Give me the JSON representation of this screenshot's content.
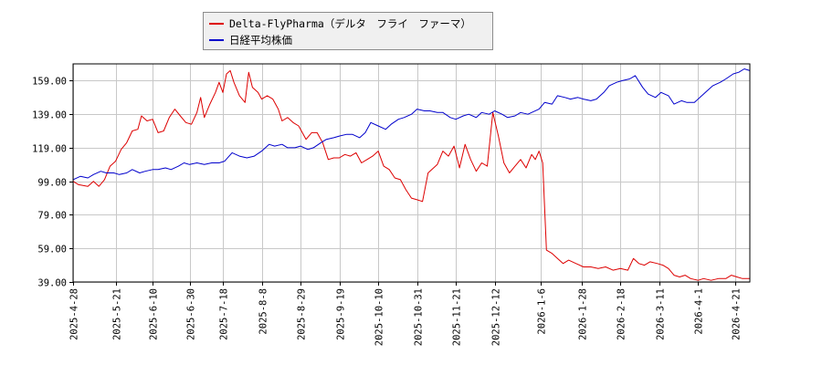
{
  "chart_data": {
    "type": "line",
    "title": "",
    "xlabel": "",
    "ylabel": "",
    "ylim": [
      39,
      169
    ],
    "y_ticks": [
      "39.00",
      "59.00",
      "79.00",
      "99.00",
      "119.00",
      "139.00",
      "159.00"
    ],
    "x_tick_labels": [
      "2025-4-28",
      "2025-5-21",
      "2025-6-10",
      "2025-6-30",
      "2025-7-18",
      "2025-8-8",
      "2025-8-29",
      "2025-9-19",
      "2025-10-10",
      "2025-10-31",
      "2025-11-21",
      "2025-12-12",
      "2026-1-6",
      "2026-1-28",
      "2026-2-18",
      "2026-3-11",
      "2026-4-1",
      "2026-4-21"
    ],
    "x_start": "2025-04-28",
    "x_end": "2026-04-29",
    "grid": true,
    "legend_position": "top-left",
    "series": [
      {
        "name": "Delta-FlyPharma（デルタ　フライ　ファーマ）",
        "color": "#dd0000",
        "points": [
          [
            "2025-04-28",
            99
          ],
          [
            "2025-05-01",
            97
          ],
          [
            "2025-05-06",
            96
          ],
          [
            "2025-05-09",
            99
          ],
          [
            "2025-05-12",
            96
          ],
          [
            "2025-05-15",
            100
          ],
          [
            "2025-05-18",
            108
          ],
          [
            "2025-05-21",
            111
          ],
          [
            "2025-05-24",
            118
          ],
          [
            "2025-05-27",
            122
          ],
          [
            "2025-05-30",
            129
          ],
          [
            "2025-06-02",
            130
          ],
          [
            "2025-06-04",
            138
          ],
          [
            "2025-06-07",
            135
          ],
          [
            "2025-06-10",
            136
          ],
          [
            "2025-06-13",
            128
          ],
          [
            "2025-06-16",
            129
          ],
          [
            "2025-06-19",
            137
          ],
          [
            "2025-06-22",
            142
          ],
          [
            "2025-06-25",
            138
          ],
          [
            "2025-06-28",
            134
          ],
          [
            "2025-07-01",
            133
          ],
          [
            "2025-07-04",
            140
          ],
          [
            "2025-07-06",
            149
          ],
          [
            "2025-07-08",
            137
          ],
          [
            "2025-07-11",
            145
          ],
          [
            "2025-07-14",
            152
          ],
          [
            "2025-07-16",
            158
          ],
          [
            "2025-07-18",
            152
          ],
          [
            "2025-07-20",
            163
          ],
          [
            "2025-07-22",
            165
          ],
          [
            "2025-07-24",
            158
          ],
          [
            "2025-07-27",
            150
          ],
          [
            "2025-07-30",
            146
          ],
          [
            "2025-08-01",
            164
          ],
          [
            "2025-08-03",
            155
          ],
          [
            "2025-08-06",
            152
          ],
          [
            "2025-08-08",
            148
          ],
          [
            "2025-08-11",
            150
          ],
          [
            "2025-08-14",
            148
          ],
          [
            "2025-08-17",
            142
          ],
          [
            "2025-08-19",
            135
          ],
          [
            "2025-08-22",
            137
          ],
          [
            "2025-08-25",
            134
          ],
          [
            "2025-08-28",
            132
          ],
          [
            "2025-09-01",
            124
          ],
          [
            "2025-09-04",
            128
          ],
          [
            "2025-09-07",
            128
          ],
          [
            "2025-09-10",
            122
          ],
          [
            "2025-09-13",
            112
          ],
          [
            "2025-09-16",
            113
          ],
          [
            "2025-09-19",
            113
          ],
          [
            "2025-09-22",
            115
          ],
          [
            "2025-09-25",
            114
          ],
          [
            "2025-09-28",
            116
          ],
          [
            "2025-10-01",
            110
          ],
          [
            "2025-10-04",
            112
          ],
          [
            "2025-10-07",
            114
          ],
          [
            "2025-10-10",
            117
          ],
          [
            "2025-10-13",
            108
          ],
          [
            "2025-10-16",
            106
          ],
          [
            "2025-10-19",
            101
          ],
          [
            "2025-10-22",
            100
          ],
          [
            "2025-10-25",
            94
          ],
          [
            "2025-10-28",
            89
          ],
          [
            "2025-10-31",
            88
          ],
          [
            "2025-11-03",
            87
          ],
          [
            "2025-11-06",
            104
          ],
          [
            "2025-11-08",
            106
          ],
          [
            "2025-11-11",
            109
          ],
          [
            "2025-11-14",
            117
          ],
          [
            "2025-11-17",
            114
          ],
          [
            "2025-11-20",
            120
          ],
          [
            "2025-11-23",
            107
          ],
          [
            "2025-11-26",
            121
          ],
          [
            "2025-11-29",
            112
          ],
          [
            "2025-12-02",
            105
          ],
          [
            "2025-12-05",
            110
          ],
          [
            "2025-12-08",
            108
          ],
          [
            "2025-12-11",
            140
          ],
          [
            "2025-12-14",
            126
          ],
          [
            "2025-12-17",
            110
          ],
          [
            "2025-12-20",
            104
          ],
          [
            "2025-12-23",
            108
          ],
          [
            "2025-12-26",
            112
          ],
          [
            "2025-12-29",
            107
          ],
          [
            "2026-01-01",
            115
          ],
          [
            "2026-01-03",
            112
          ],
          [
            "2026-01-05",
            117
          ],
          [
            "2026-01-07",
            110
          ],
          [
            "2026-01-09",
            58
          ],
          [
            "2026-01-12",
            56
          ],
          [
            "2026-01-15",
            53
          ],
          [
            "2026-01-18",
            50
          ],
          [
            "2026-01-21",
            52
          ],
          [
            "2026-01-25",
            50
          ],
          [
            "2026-01-29",
            48
          ],
          [
            "2026-02-02",
            48
          ],
          [
            "2026-02-06",
            47
          ],
          [
            "2026-02-10",
            48
          ],
          [
            "2026-02-14",
            46
          ],
          [
            "2026-02-18",
            47
          ],
          [
            "2026-02-22",
            46
          ],
          [
            "2026-02-25",
            53
          ],
          [
            "2026-02-28",
            50
          ],
          [
            "2026-03-03",
            49
          ],
          [
            "2026-03-06",
            51
          ],
          [
            "2026-03-10",
            50
          ],
          [
            "2026-03-13",
            49
          ],
          [
            "2026-03-16",
            47
          ],
          [
            "2026-03-19",
            43
          ],
          [
            "2026-03-22",
            42
          ],
          [
            "2026-03-25",
            43
          ],
          [
            "2026-03-28",
            41
          ],
          [
            "2026-04-01",
            40
          ],
          [
            "2026-04-04",
            41
          ],
          [
            "2026-04-08",
            40
          ],
          [
            "2026-04-12",
            41
          ],
          [
            "2026-04-16",
            41
          ],
          [
            "2026-04-19",
            43
          ],
          [
            "2026-04-22",
            42
          ],
          [
            "2026-04-25",
            41
          ],
          [
            "2026-04-29",
            41
          ]
        ]
      },
      {
        "name": "日経平均株価",
        "color": "#0000cc",
        "points": [
          [
            "2025-04-28",
            100
          ],
          [
            "2025-05-02",
            102
          ],
          [
            "2025-05-06",
            101
          ],
          [
            "2025-05-09",
            103
          ],
          [
            "2025-05-13",
            105
          ],
          [
            "2025-05-16",
            104
          ],
          [
            "2025-05-20",
            104
          ],
          [
            "2025-05-23",
            103
          ],
          [
            "2025-05-27",
            104
          ],
          [
            "2025-05-30",
            106
          ],
          [
            "2025-06-03",
            104
          ],
          [
            "2025-06-06",
            105
          ],
          [
            "2025-06-10",
            106
          ],
          [
            "2025-06-13",
            106
          ],
          [
            "2025-06-17",
            107
          ],
          [
            "2025-06-20",
            106
          ],
          [
            "2025-06-24",
            108
          ],
          [
            "2025-06-27",
            110
          ],
          [
            "2025-06-30",
            109
          ],
          [
            "2025-07-04",
            110
          ],
          [
            "2025-07-08",
            109
          ],
          [
            "2025-07-12",
            110
          ],
          [
            "2025-07-16",
            110
          ],
          [
            "2025-07-19",
            111
          ],
          [
            "2025-07-23",
            116
          ],
          [
            "2025-07-27",
            114
          ],
          [
            "2025-07-31",
            113
          ],
          [
            "2025-08-04",
            114
          ],
          [
            "2025-08-08",
            117
          ],
          [
            "2025-08-12",
            121
          ],
          [
            "2025-08-15",
            120
          ],
          [
            "2025-08-19",
            121
          ],
          [
            "2025-08-22",
            119
          ],
          [
            "2025-08-26",
            119
          ],
          [
            "2025-08-29",
            120
          ],
          [
            "2025-09-02",
            118
          ],
          [
            "2025-09-05",
            119
          ],
          [
            "2025-09-09",
            122
          ],
          [
            "2025-09-12",
            124
          ],
          [
            "2025-09-16",
            125
          ],
          [
            "2025-09-19",
            126
          ],
          [
            "2025-09-23",
            127
          ],
          [
            "2025-09-26",
            127
          ],
          [
            "2025-09-30",
            125
          ],
          [
            "2025-10-03",
            128
          ],
          [
            "2025-10-06",
            134
          ],
          [
            "2025-10-10",
            132
          ],
          [
            "2025-10-14",
            130
          ],
          [
            "2025-10-17",
            133
          ],
          [
            "2025-10-21",
            136
          ],
          [
            "2025-10-24",
            137
          ],
          [
            "2025-10-28",
            139
          ],
          [
            "2025-10-31",
            142
          ],
          [
            "2025-11-04",
            141
          ],
          [
            "2025-11-07",
            141
          ],
          [
            "2025-11-11",
            140
          ],
          [
            "2025-11-14",
            140
          ],
          [
            "2025-11-18",
            137
          ],
          [
            "2025-11-21",
            136
          ],
          [
            "2025-11-25",
            138
          ],
          [
            "2025-11-28",
            139
          ],
          [
            "2025-12-02",
            137
          ],
          [
            "2025-12-05",
            140
          ],
          [
            "2025-12-09",
            139
          ],
          [
            "2025-12-12",
            141
          ],
          [
            "2025-12-16",
            139
          ],
          [
            "2025-12-19",
            137
          ],
          [
            "2025-12-23",
            138
          ],
          [
            "2025-12-26",
            140
          ],
          [
            "2025-12-30",
            139
          ],
          [
            "2026-01-05",
            142
          ],
          [
            "2026-01-08",
            146
          ],
          [
            "2026-01-12",
            145
          ],
          [
            "2026-01-15",
            150
          ],
          [
            "2026-01-19",
            149
          ],
          [
            "2026-01-22",
            148
          ],
          [
            "2026-01-26",
            149
          ],
          [
            "2026-01-29",
            148
          ],
          [
            "2026-02-02",
            147
          ],
          [
            "2026-02-05",
            148
          ],
          [
            "2026-02-09",
            152
          ],
          [
            "2026-02-12",
            156
          ],
          [
            "2026-02-16",
            158
          ],
          [
            "2026-02-19",
            159
          ],
          [
            "2026-02-23",
            160
          ],
          [
            "2026-02-26",
            162
          ],
          [
            "2026-03-02",
            155
          ],
          [
            "2026-03-05",
            151
          ],
          [
            "2026-03-09",
            149
          ],
          [
            "2026-03-12",
            152
          ],
          [
            "2026-03-16",
            150
          ],
          [
            "2026-03-19",
            145
          ],
          [
            "2026-03-23",
            147
          ],
          [
            "2026-03-26",
            146
          ],
          [
            "2026-03-30",
            146
          ],
          [
            "2026-04-02",
            149
          ],
          [
            "2026-04-06",
            153
          ],
          [
            "2026-04-09",
            156
          ],
          [
            "2026-04-13",
            158
          ],
          [
            "2026-04-16",
            160
          ],
          [
            "2026-04-20",
            163
          ],
          [
            "2026-04-23",
            164
          ],
          [
            "2026-04-26",
            166
          ],
          [
            "2026-04-29",
            165
          ]
        ]
      }
    ]
  }
}
